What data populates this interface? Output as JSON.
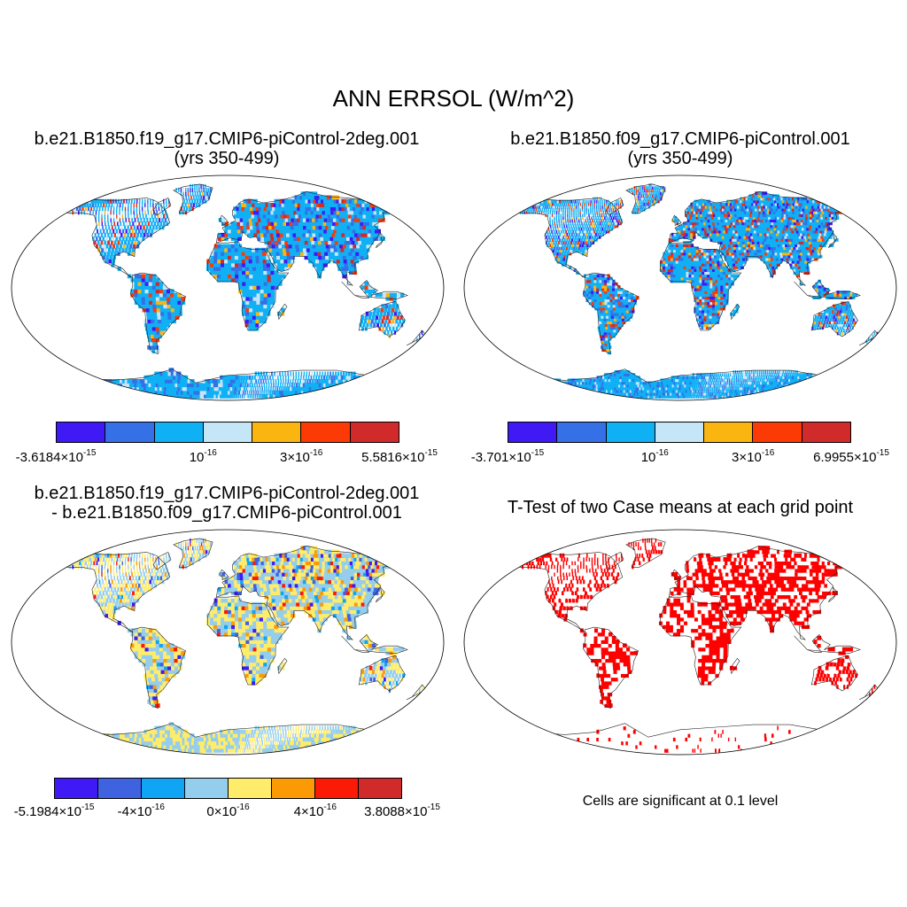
{
  "title": "ANN ERRSOL (W/m^2)",
  "panels": [
    {
      "line1": "b.e21.B1850.f19_g17.CMIP6-piControl-2deg.001",
      "line2": "(yrs 350-499)",
      "colors": [
        "#3f1af5",
        "#3570e6",
        "#10b0f5",
        "#c5e6f6",
        "#fbb511",
        "#fb3a05",
        "#d12a2a"
      ],
      "ticks": [
        {
          "base": "-3.6184×10",
          "exp": "-15"
        },
        {
          "base": "10",
          "exp": "-16"
        },
        {
          "base": "3×10",
          "exp": "-16"
        },
        {
          "base": "5.5816×10",
          "exp": "-15"
        }
      ]
    },
    {
      "line1": "b.e21.B1850.f09_g17.CMIP6-piControl.001",
      "line2": "(yrs 350-499)",
      "colors": [
        "#3f1af5",
        "#3570e6",
        "#10b0f5",
        "#c5e6f6",
        "#fbb511",
        "#fb3a05",
        "#d12a2a"
      ],
      "ticks": [
        {
          "base": "-3.701×10",
          "exp": "-15"
        },
        {
          "base": "10",
          "exp": "-16"
        },
        {
          "base": "3×10",
          "exp": "-16"
        },
        {
          "base": "6.9955×10",
          "exp": "-15"
        }
      ]
    },
    {
      "line1": "b.e21.B1850.f19_g17.CMIP6-piControl-2deg.001",
      "line2": "- b.e21.B1850.f09_g17.CMIP6-piControl.001",
      "colors": [
        "#3f1af5",
        "#3f62e0",
        "#10a4f5",
        "#95cdec",
        "#ffec6a",
        "#fb9a05",
        "#fb1a05",
        "#d12a2a"
      ],
      "ticks": [
        {
          "base": "-5.1984×10",
          "exp": "-15"
        },
        {
          "base": "-4×10",
          "exp": "-16"
        },
        {
          "base": "0×10",
          "exp": "-16"
        },
        {
          "base": "4×10",
          "exp": "-16"
        },
        {
          "base": "3.8088×10",
          "exp": "-15"
        }
      ]
    },
    {
      "line1": "T-Test of two Case means at each grid point",
      "note": "Cells are significant at 0.1 level",
      "sig_color": "#ff0000"
    }
  ]
}
